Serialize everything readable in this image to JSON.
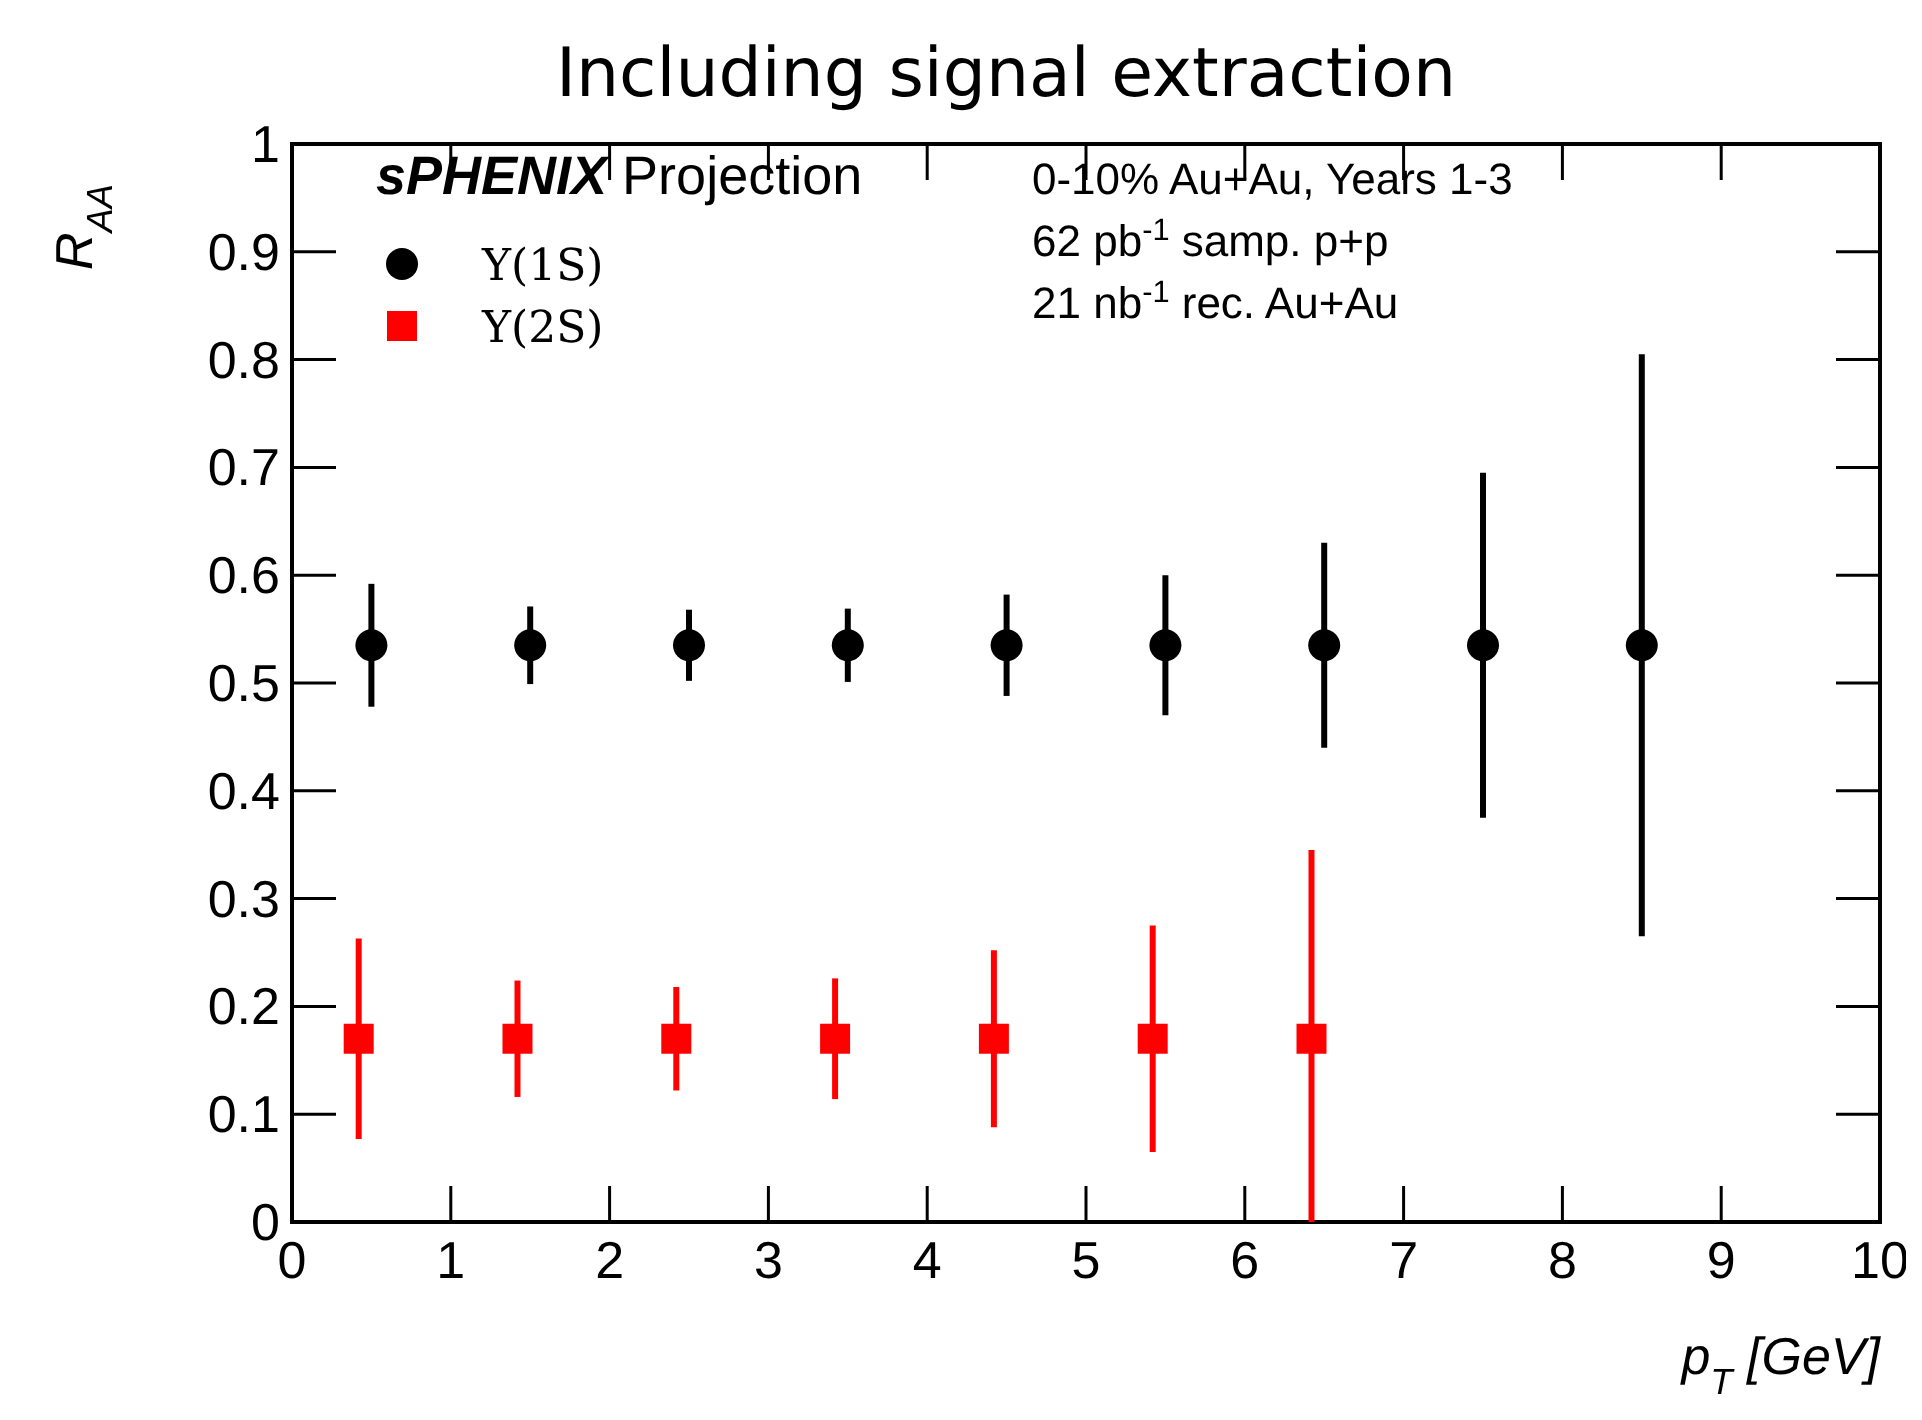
{
  "chart_data": {
    "type": "scatter",
    "title": "Including signal extraction",
    "xlabel": "p$_{T}$ [GeV]",
    "ylabel": "R$_{AA}$",
    "xlim": [
      0,
      10
    ],
    "xticks": [
      0,
      1,
      2,
      3,
      4,
      5,
      6,
      7,
      8,
      9,
      10
    ],
    "ylim": [
      0,
      1
    ],
    "yticks": [
      0,
      0.1,
      0.2,
      0.3,
      0.4,
      0.5,
      0.6,
      0.7,
      0.8,
      0.9,
      1
    ],
    "legend": "top left",
    "grid": false,
    "annotations": [
      "sPHENIX Projection",
      "0-10% Au+Au, Years 1-3",
      "62 pb$^{-1}$ samp. p+p",
      "21 nb$^{-1}$ rec. Au+Au"
    ],
    "series": [
      {
        "name": "Υ(1S)",
        "color": "#000000",
        "marker": "circle",
        "x": [
          0.5,
          1.5,
          2.5,
          3.5,
          4.5,
          5.5,
          6.5,
          7.5,
          8.5
        ],
        "values": [
          0.535,
          0.535,
          0.535,
          0.535,
          0.535,
          0.535,
          0.535,
          0.535,
          0.535
        ],
        "errors": [
          0.057,
          0.036,
          0.033,
          0.034,
          0.047,
          0.065,
          0.095,
          0.16,
          0.27
        ]
      },
      {
        "name": "Υ(2S)",
        "color": "#ff0000",
        "marker": "square",
        "x": [
          0.42,
          1.42,
          2.42,
          3.42,
          4.42,
          5.42,
          6.42
        ],
        "values": [
          0.17,
          0.17,
          0.17,
          0.17,
          0.17,
          0.17,
          0.17
        ],
        "errors": [
          0.093,
          0.054,
          0.048,
          0.056,
          0.082,
          0.105,
          [
            0,
            0.345
          ]
        ]
      }
    ]
  }
}
